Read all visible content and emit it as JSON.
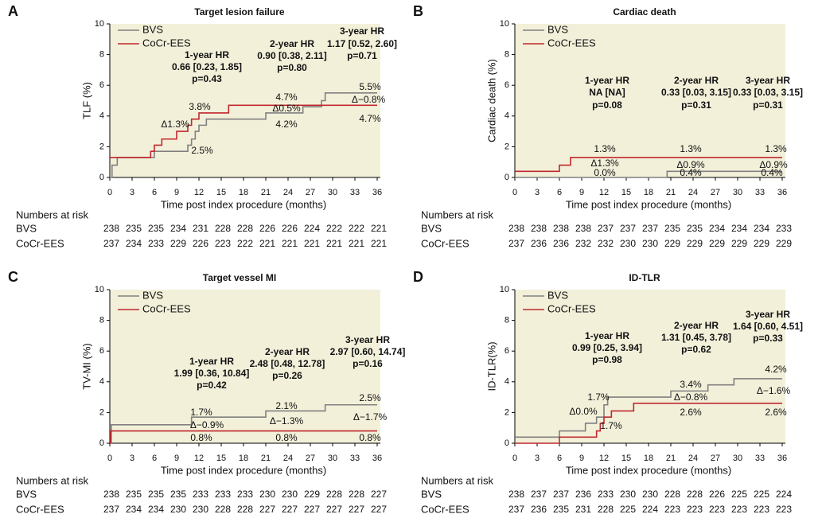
{
  "chart_data": [
    {
      "type": "step",
      "panel": "A",
      "title": "Target lesion failure",
      "ylabel": "TLF (%)",
      "xlabel": "Time post index procedure (months)",
      "xlim": [
        0,
        36
      ],
      "ylim": [
        0,
        10
      ],
      "xticks": [
        0,
        3,
        6,
        9,
        12,
        15,
        18,
        21,
        24,
        27,
        30,
        33,
        36
      ],
      "yticks": [
        0,
        2,
        4,
        6,
        8,
        10
      ],
      "series": [
        {
          "name": "BVS",
          "color": "#808080",
          "x": [
            0,
            0.3,
            1,
            6,
            10.5,
            11,
            11.5,
            12,
            13,
            21,
            26,
            28.5,
            29,
            36
          ],
          "values": [
            0,
            0.8,
            1.3,
            1.7,
            2.1,
            2.5,
            3.0,
            3.4,
            3.8,
            4.2,
            4.6,
            5.0,
            5.5,
            5.5
          ]
        },
        {
          "name": "CoCr-EES",
          "color": "#c0282d",
          "x": [
            0,
            5.5,
            6,
            7,
            9,
            10.5,
            11,
            12,
            16,
            36
          ],
          "values": [
            1.3,
            1.7,
            2.1,
            2.5,
            3.0,
            3.4,
            3.8,
            4.2,
            4.7,
            4.7
          ]
        }
      ],
      "hr": [
        {
          "label": "1-year HR",
          "ci": "0.66 [0.23, 1.85]",
          "p": "p=0.43"
        },
        {
          "label": "2-year HR",
          "ci": "0.90 [0.38, 2.11]",
          "p": "p=0.80"
        },
        {
          "label": "3-year HR",
          "ci": "1.17 [0.52, 2.60]",
          "p": "p=0.71"
        }
      ],
      "labels": [
        "3.8%",
        "Δ1.3%",
        "2.5%",
        "4.7%",
        "Δ0.5%",
        "4.2%",
        "5.5%",
        "Δ−0.8%",
        "4.7%"
      ],
      "risk": {
        "title": "Numbers at risk",
        "rows": [
          {
            "name": "BVS",
            "values": [
              238,
              235,
              235,
              234,
              231,
              228,
              228,
              226,
              226,
              224,
              222,
              222,
              221
            ]
          },
          {
            "name": "CoCr-EES",
            "values": [
              237,
              234,
              233,
              229,
              226,
              223,
              222,
              221,
              221,
              221,
              221,
              221,
              221
            ]
          }
        ]
      }
    },
    {
      "type": "step",
      "panel": "B",
      "title": "Cardiac death",
      "ylabel": "Cardiac death (%)",
      "xlabel": "Time post index procedure (months)",
      "xlim": [
        0,
        36
      ],
      "ylim": [
        0,
        10
      ],
      "xticks": [
        0,
        3,
        6,
        9,
        12,
        15,
        18,
        21,
        24,
        27,
        30,
        33,
        36
      ],
      "yticks": [
        0,
        2,
        4,
        6,
        8,
        10
      ],
      "series": [
        {
          "name": "BVS",
          "color": "#808080",
          "x": [
            0,
            20.5,
            36
          ],
          "values": [
            0,
            0.4,
            0.4
          ]
        },
        {
          "name": "CoCr-EES",
          "color": "#c0282d",
          "x": [
            0,
            6,
            7.5,
            36
          ],
          "values": [
            0.4,
            0.8,
            1.3,
            1.3
          ]
        }
      ],
      "hr": [
        {
          "label": "1-year HR",
          "ci": "NA [NA]",
          "p": "p=0.08"
        },
        {
          "label": "2-year HR",
          "ci": "0.33 [0.03, 3.15]",
          "p": "p=0.31"
        },
        {
          "label": "3-year HR",
          "ci": "0.33 [0.03, 3.15]",
          "p": "p=0.31"
        }
      ],
      "labels": [
        "1.3%",
        "Δ1.3%",
        "0.0%",
        "1.3%",
        "Δ0.9%",
        "0.4%",
        "1.3%",
        "Δ0.9%",
        "0.4%"
      ],
      "risk": {
        "title": "Numbers at risk",
        "rows": [
          {
            "name": "BVS",
            "values": [
              238,
              238,
              238,
              238,
              237,
              237,
              237,
              235,
              235,
              234,
              234,
              234,
              233
            ]
          },
          {
            "name": "CoCr-EES",
            "values": [
              237,
              236,
              236,
              232,
              232,
              230,
              230,
              229,
              229,
              229,
              229,
              229,
              229
            ]
          }
        ]
      }
    },
    {
      "type": "step",
      "panel": "C",
      "title": "Target vessel MI",
      "ylabel": "TV-MI (%)",
      "xlabel": "Time post index procedure (months)",
      "xlim": [
        0,
        36
      ],
      "ylim": [
        0,
        10
      ],
      "xticks": [
        0,
        3,
        6,
        9,
        12,
        15,
        18,
        21,
        24,
        27,
        30,
        33,
        36
      ],
      "yticks": [
        0,
        2,
        4,
        6,
        8,
        10
      ],
      "series": [
        {
          "name": "BVS",
          "color": "#808080",
          "x": [
            0,
            0.2,
            11,
            21,
            29,
            36
          ],
          "values": [
            0,
            1.2,
            1.7,
            2.1,
            2.5,
            2.5
          ]
        },
        {
          "name": "CoCr-EES",
          "color": "#c0282d",
          "x": [
            0,
            0.1,
            36
          ],
          "values": [
            0,
            0.8,
            0.8
          ]
        }
      ],
      "hr": [
        {
          "label": "1-year HR",
          "ci": "1.99 [0.36, 10.84]",
          "p": "p=0.42"
        },
        {
          "label": "2-year HR",
          "ci": "2.48 [0.48, 12.78]",
          "p": "p=0.26"
        },
        {
          "label": "3-year HR",
          "ci": "2.97 [0.60, 14.74]",
          "p": "p=0.16"
        }
      ],
      "labels": [
        "1.7%",
        "Δ−0.9%",
        "0.8%",
        "2.1%",
        "Δ−1.3%",
        "0.8%",
        "2.5%",
        "Δ−1.7%",
        "0.8%"
      ],
      "risk": {
        "title": "Numbers at risk",
        "rows": [
          {
            "name": "BVS",
            "values": [
              238,
              235,
              235,
              235,
              233,
              233,
              233,
              230,
              230,
              229,
              228,
              228,
              227
            ]
          },
          {
            "name": "CoCr-EES",
            "values": [
              237,
              234,
              234,
              230,
              230,
              228,
              228,
              227,
              227,
              227,
              227,
              227,
              227
            ]
          }
        ]
      }
    },
    {
      "type": "step",
      "panel": "D",
      "title": "ID-TLR",
      "ylabel": "ID-TLR(%)",
      "xlabel": "Time post index procedure (months)",
      "xlim": [
        0,
        36
      ],
      "ylim": [
        0,
        10
      ],
      "xticks": [
        0,
        3,
        6,
        9,
        12,
        15,
        18,
        21,
        24,
        27,
        30,
        33,
        36
      ],
      "yticks": [
        0,
        2,
        4,
        6,
        8,
        10
      ],
      "series": [
        {
          "name": "BVS",
          "color": "#808080",
          "x": [
            0,
            6,
            9.5,
            11,
            12,
            12.5,
            21,
            26,
            29.5,
            36
          ],
          "values": [
            0.4,
            0.8,
            1.3,
            1.7,
            2.5,
            3.0,
            3.4,
            3.8,
            4.2,
            4.2
          ]
        },
        {
          "name": "CoCr-EES",
          "color": "#c0282d",
          "x": [
            0,
            6,
            11,
            11.5,
            12,
            13,
            16,
            36
          ],
          "values": [
            0,
            0.4,
            0.8,
            1.3,
            1.7,
            2.1,
            2.6,
            2.6
          ]
        }
      ],
      "hr": [
        {
          "label": "1-year HR",
          "ci": "0.99 [0.25, 3.94]",
          "p": "p=0.98"
        },
        {
          "label": "2-year HR",
          "ci": "1.31 [0.45, 3.78]",
          "p": "p=0.62"
        },
        {
          "label": "3-year HR",
          "ci": "1.64 [0.60, 4.51]",
          "p": "p=0.33"
        }
      ],
      "labels": [
        "1.7%",
        "Δ0.0%",
        "1.7%",
        "3.4%",
        "Δ−0.8%",
        "2.6%",
        "4.2%",
        "Δ−1.6%",
        "2.6%"
      ],
      "risk": {
        "title": "Numbers at risk",
        "rows": [
          {
            "name": "BVS",
            "values": [
              238,
              237,
              237,
              236,
              233,
              230,
              230,
              228,
              228,
              226,
              225,
              225,
              224
            ]
          },
          {
            "name": "CoCr-EES",
            "values": [
              237,
              236,
              235,
              231,
              228,
              225,
              224,
              223,
              223,
              223,
              223,
              223,
              223
            ]
          }
        ]
      }
    }
  ]
}
